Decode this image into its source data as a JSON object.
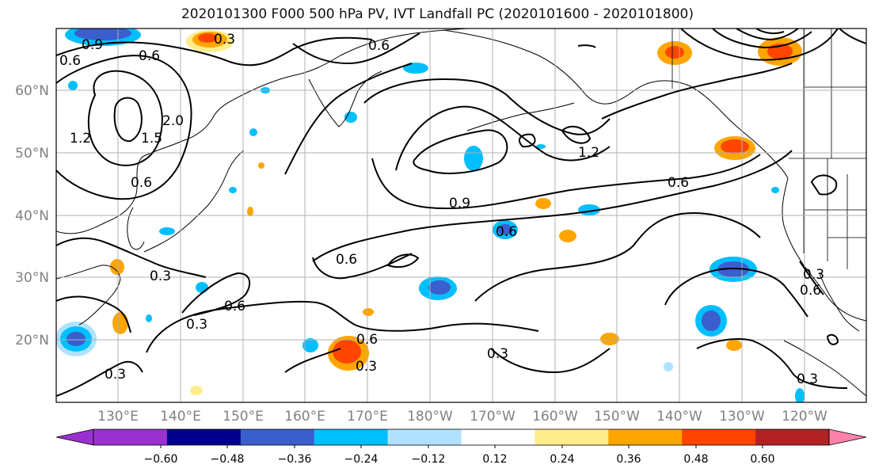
{
  "title": "2020101300 F000 500 hPa PV, IVT Landfall PC (2020101600 - 2020101800)",
  "lat_labels": [
    "60°N",
    "50°N",
    "40°N",
    "30°N",
    "20°N"
  ],
  "lon_labels": [
    "130°E",
    "140°E",
    "150°E",
    "160°E",
    "170°E",
    "180°W",
    "170°W",
    "160°W",
    "150°W",
    "140°W",
    "130°W",
    "120°W"
  ],
  "contour_labels": [
    "0.9",
    "0.6",
    "0.3",
    "0.6",
    "0.6",
    "1.5",
    "2.0",
    "1.2",
    "0.6",
    "0.9",
    "0.6",
    "1.2",
    "0.6",
    "0.6",
    "0.3",
    "0.6",
    "0.3",
    "0.6",
    "0.3",
    "0.3",
    "0.3",
    "0.3",
    "0.6",
    "0.3"
  ],
  "colorbar": {
    "ticks": [
      "−0.60",
      "−0.48",
      "−0.36",
      "−0.24",
      "−0.12",
      "0.12",
      "0.24",
      "0.36",
      "0.48",
      "0.60"
    ],
    "colors": [
      "#9b30d0",
      "#00008b",
      "#3a5fcd",
      "#00bfff",
      "#b0e2ff",
      "#ffffff",
      "#ffec8b",
      "#ffa500",
      "#ff4500",
      "#b22222",
      "#ff82ab",
      "#ff82ab"
    ]
  },
  "colors": {
    "neg_strong": "#3a5fcd",
    "neg_mid": "#00bfff",
    "neg_weak": "#b0e2ff",
    "pos_weak": "#ffec8b",
    "pos_mid": "#ffa500",
    "pos_strong": "#ff4500"
  }
}
